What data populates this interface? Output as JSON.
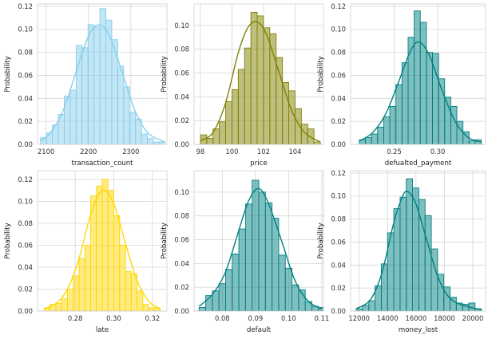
{
  "chart_data": [
    {
      "type": "histogram",
      "xlabel": "transaction_count",
      "ylabel": "Probability",
      "color": "#87CEEB",
      "kde": true,
      "xlim": [
        2080,
        2385
      ],
      "ylim": [
        0,
        0.122
      ],
      "xticks": [
        2100,
        2200,
        2300
      ],
      "yticks": [
        0.0,
        0.02,
        0.04,
        0.06,
        0.08,
        0.1,
        0.12
      ],
      "bin_edges": [
        2087,
        2101,
        2115,
        2129,
        2143,
        2157,
        2171,
        2185,
        2199,
        2213,
        2227,
        2241,
        2255,
        2269,
        2283,
        2297,
        2311,
        2325,
        2339,
        2353,
        2367,
        2380
      ],
      "values": [
        0.006,
        0.01,
        0.017,
        0.026,
        0.042,
        0.047,
        0.086,
        0.084,
        0.104,
        0.102,
        0.118,
        0.108,
        0.091,
        0.068,
        0.05,
        0.028,
        0.022,
        0.009,
        0.005,
        0.002,
        0.002
      ],
      "kde_x": [
        2087,
        2110,
        2140,
        2170,
        2200,
        2225,
        2250,
        2280,
        2310,
        2340,
        2380
      ],
      "kde_y": [
        0.003,
        0.01,
        0.029,
        0.062,
        0.094,
        0.104,
        0.094,
        0.062,
        0.029,
        0.01,
        0.002
      ]
    },
    {
      "type": "histogram",
      "xlabel": "price",
      "ylabel": "Probability",
      "color": "#808000",
      "kde": true,
      "xlim": [
        97.6,
        105.8
      ],
      "ylim": [
        0,
        0.118
      ],
      "xticks": [
        98,
        100,
        102,
        104
      ],
      "yticks": [
        0.0,
        0.02,
        0.04,
        0.06,
        0.08,
        0.1
      ],
      "bin_edges": [
        98.0,
        98.4,
        98.8,
        99.2,
        99.6,
        100.0,
        100.4,
        100.8,
        101.2,
        101.6,
        102.0,
        102.4,
        102.8,
        103.2,
        103.6,
        104.0,
        104.4,
        104.8,
        105.2,
        105.6
      ],
      "values": [
        0.008,
        0.005,
        0.013,
        0.019,
        0.036,
        0.046,
        0.063,
        0.081,
        0.111,
        0.108,
        0.098,
        0.093,
        0.073,
        0.052,
        0.045,
        0.03,
        0.017,
        0.013,
        0.002
      ],
      "kde_x": [
        98.0,
        98.8,
        99.6,
        100.4,
        101.0,
        101.6,
        102.2,
        103.0,
        103.8,
        104.6,
        105.6
      ],
      "kde_y": [
        0.003,
        0.01,
        0.035,
        0.077,
        0.098,
        0.103,
        0.092,
        0.06,
        0.028,
        0.01,
        0.002
      ]
    },
    {
      "type": "histogram",
      "xlabel": "defualted_payment",
      "ylabel": "Probability",
      "color": "#008080",
      "kde": true,
      "xlim": [
        0.2,
        0.355
      ],
      "ylim": [
        0,
        0.122
      ],
      "xticks": [
        0.25,
        0.3
      ],
      "yticks": [
        0.0,
        0.02,
        0.04,
        0.06,
        0.08,
        0.1,
        0.12
      ],
      "bin_edges": [
        0.21,
        0.217,
        0.224,
        0.231,
        0.238,
        0.245,
        0.252,
        0.259,
        0.266,
        0.273,
        0.28,
        0.287,
        0.294,
        0.301,
        0.308,
        0.315,
        0.322,
        0.329,
        0.336,
        0.343,
        0.35
      ],
      "values": [
        0.004,
        0.006,
        0.009,
        0.015,
        0.024,
        0.033,
        0.052,
        0.071,
        0.093,
        0.116,
        0.106,
        0.08,
        0.079,
        0.057,
        0.041,
        0.033,
        0.02,
        0.011,
        0.003,
        0.004
      ],
      "kde_x": [
        0.21,
        0.225,
        0.24,
        0.255,
        0.268,
        0.278,
        0.29,
        0.305,
        0.32,
        0.335,
        0.35
      ],
      "kde_y": [
        0.003,
        0.01,
        0.026,
        0.054,
        0.08,
        0.089,
        0.078,
        0.047,
        0.02,
        0.006,
        0.002
      ]
    },
    {
      "type": "histogram",
      "xlabel": "late",
      "ylabel": "Probability",
      "color": "#FFD700",
      "kde": true,
      "xlim": [
        0.2605,
        0.3275
      ],
      "ylim": [
        0,
        0.128
      ],
      "xticks": [
        0.28,
        0.3,
        0.32
      ],
      "yticks": [
        0.0,
        0.02,
        0.04,
        0.06,
        0.08,
        0.1,
        0.12
      ],
      "bin_edges": [
        0.264,
        0.267,
        0.27,
        0.273,
        0.276,
        0.279,
        0.282,
        0.285,
        0.288,
        0.291,
        0.294,
        0.297,
        0.3,
        0.303,
        0.306,
        0.309,
        0.312,
        0.315,
        0.318,
        0.321,
        0.324
      ],
      "values": [
        0.003,
        0.006,
        0.007,
        0.011,
        0.02,
        0.032,
        0.048,
        0.06,
        0.105,
        0.114,
        0.12,
        0.11,
        0.087,
        0.06,
        0.036,
        0.034,
        0.018,
        0.006,
        0.003,
        0.003
      ],
      "kde_x": [
        0.264,
        0.27,
        0.276,
        0.282,
        0.288,
        0.294,
        0.3,
        0.306,
        0.312,
        0.318,
        0.324
      ],
      "kde_y": [
        0.002,
        0.007,
        0.02,
        0.048,
        0.088,
        0.11,
        0.098,
        0.062,
        0.028,
        0.009,
        0.002
      ]
    },
    {
      "type": "histogram",
      "xlabel": "default",
      "ylabel": "Probability",
      "color": "#008080",
      "kde": true,
      "xlim": [
        0.0715,
        0.1105
      ],
      "ylim": [
        0,
        0.118
      ],
      "xticks": [
        0.08,
        0.09,
        0.1,
        0.11
      ],
      "yticks": [
        0.0,
        0.02,
        0.04,
        0.06,
        0.08,
        0.1
      ],
      "bin_edges": [
        0.073,
        0.075,
        0.077,
        0.079,
        0.081,
        0.083,
        0.085,
        0.087,
        0.089,
        0.091,
        0.093,
        0.095,
        0.097,
        0.099,
        0.101,
        0.103,
        0.105,
        0.107,
        0.109,
        0.111
      ],
      "values": [
        0.003,
        0.013,
        0.017,
        0.023,
        0.035,
        0.048,
        0.069,
        0.09,
        0.11,
        0.1,
        0.091,
        0.078,
        0.047,
        0.036,
        0.022,
        0.018,
        0.008,
        0.004,
        0.003
      ],
      "kde_x": [
        0.073,
        0.077,
        0.081,
        0.085,
        0.088,
        0.091,
        0.094,
        0.098,
        0.102,
        0.106,
        0.11
      ],
      "kde_y": [
        0.004,
        0.014,
        0.033,
        0.068,
        0.093,
        0.103,
        0.09,
        0.058,
        0.025,
        0.008,
        0.002
      ]
    },
    {
      "type": "histogram",
      "xlabel": "money_lost",
      "ylabel": "Probability",
      "color": "#008080",
      "kde": true,
      "xlim": [
        11400,
        20900
      ],
      "ylim": [
        0,
        0.122
      ],
      "xticks": [
        12000,
        14000,
        16000,
        18000,
        20000
      ],
      "yticks": [
        0.0,
        0.02,
        0.04,
        0.06,
        0.08,
        0.1,
        0.12
      ],
      "bin_edges": [
        11800,
        12240,
        12680,
        13120,
        13560,
        14000,
        14440,
        14880,
        15320,
        15760,
        16200,
        16640,
        17080,
        17520,
        17960,
        18400,
        18840,
        19280,
        19720,
        20160,
        20600
      ],
      "values": [
        0.002,
        0.005,
        0.009,
        0.022,
        0.041,
        0.068,
        0.089,
        0.099,
        0.115,
        0.107,
        0.097,
        0.083,
        0.054,
        0.032,
        0.021,
        0.012,
        0.007,
        0.006,
        0.007,
        0.002
      ],
      "kde_x": [
        11800,
        12800,
        13600,
        14400,
        15000,
        15400,
        16000,
        16800,
        17600,
        18600,
        20600
      ],
      "kde_y": [
        0.002,
        0.01,
        0.033,
        0.075,
        0.098,
        0.104,
        0.093,
        0.06,
        0.028,
        0.009,
        0.001
      ]
    }
  ]
}
